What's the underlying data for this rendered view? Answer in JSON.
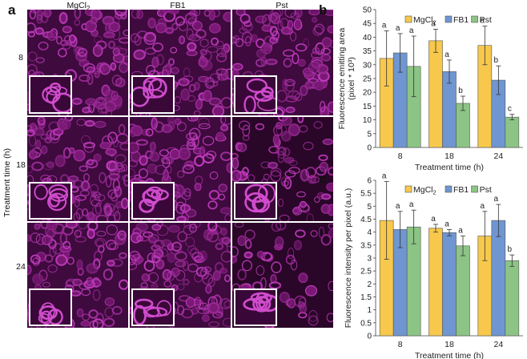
{
  "panel_a": {
    "label": "a",
    "columns": [
      "MgCl2",
      "FB1",
      "Pst"
    ],
    "rows": [
      "8",
      "18",
      "24"
    ],
    "y_axis_label": "Treatment time (h)"
  },
  "chart_data": [
    {
      "panel": "b",
      "type": "bar",
      "categories": [
        "8",
        "18",
        "24"
      ],
      "series": [
        {
          "name": "MgCl2",
          "values": [
            32.3,
            38.7,
            37.0
          ],
          "errors": [
            10.0,
            4.2,
            7.0
          ],
          "letters": [
            "a",
            "a",
            "a"
          ],
          "color": "#f7c84c"
        },
        {
          "name": "FB1",
          "values": [
            34.3,
            27.5,
            24.4
          ],
          "errors": [
            7.0,
            4.2,
            5.2
          ],
          "letters": [
            "a",
            "a",
            "b"
          ],
          "color": "#6f96d1"
        },
        {
          "name": "Pst",
          "values": [
            29.4,
            16.0,
            11.0
          ],
          "errors": [
            11.0,
            2.6,
            1.0
          ],
          "letters": [
            "a",
            "b",
            "c"
          ],
          "color": "#8cc485"
        }
      ],
      "xlabel": "Treatment time (h)",
      "ylabel_line1": "Fluorescence emitting area",
      "ylabel_line2": "(pixel * 10³)",
      "ylim": [
        0,
        50
      ],
      "yticks": [
        0,
        5,
        10,
        15,
        20,
        25,
        30,
        35,
        40,
        45,
        50
      ],
      "legend_position": "top-right"
    },
    {
      "panel": "c",
      "type": "bar",
      "categories": [
        "8",
        "18",
        "24"
      ],
      "series": [
        {
          "name": "MgCl2",
          "values": [
            4.45,
            4.15,
            3.85
          ],
          "errors": [
            1.5,
            0.15,
            0.95
          ],
          "letters": [
            "a",
            "a",
            "a"
          ],
          "color": "#f7c84c"
        },
        {
          "name": "FB1",
          "values": [
            4.1,
            3.98,
            4.45
          ],
          "errors": [
            0.7,
            0.12,
            0.62
          ],
          "letters": [
            "a",
            "a",
            "a"
          ],
          "color": "#6f96d1"
        },
        {
          "name": "Pst",
          "values": [
            4.2,
            3.47,
            2.9
          ],
          "errors": [
            0.65,
            0.38,
            0.22
          ],
          "letters": [
            "a",
            "a",
            "b"
          ],
          "color": "#8cc485"
        }
      ],
      "xlabel": "Treatment time (h)",
      "ylabel": "Fluorescence intensity per pixel (a.u.)",
      "ylim": [
        0,
        6
      ],
      "yticks": [
        0,
        0.5,
        1,
        1.5,
        2,
        2.5,
        3,
        3.5,
        4,
        4.5,
        5,
        5.5,
        6
      ],
      "legend_position": "top-right"
    }
  ]
}
